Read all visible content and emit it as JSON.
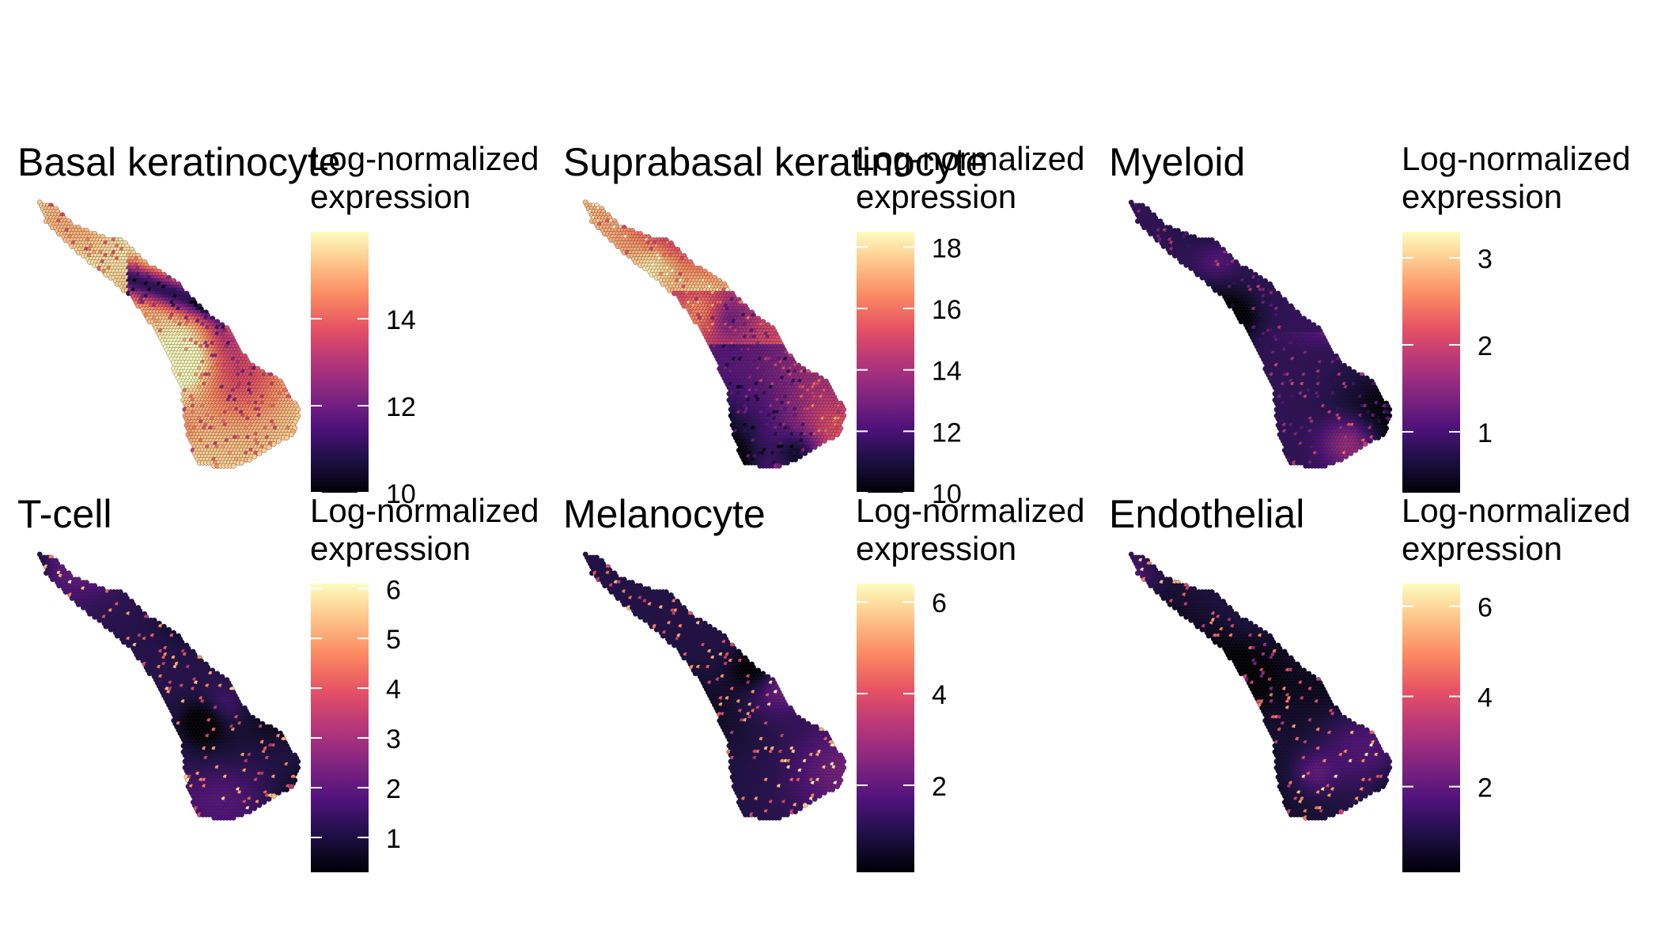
{
  "figure": {
    "colormap": [
      "#000004",
      "#1c1044",
      "#4f127b",
      "#812581",
      "#b5367a",
      "#e55064",
      "#fb8761",
      "#fec287",
      "#fcfdbf"
    ]
  },
  "chart_data": [
    {
      "type": "heatmap",
      "title": "Basal keratinocyte",
      "legend_title": [
        "Log-normalized",
        "expression"
      ],
      "range": [
        10,
        16
      ],
      "ticks": [
        10,
        12,
        14
      ],
      "pattern": "high_everywhere_low_mid_band",
      "mean_level": 0.82
    },
    {
      "type": "heatmap",
      "title": "Suprabasal keratinocyte",
      "legend_title": [
        "Log-normalized",
        "expression"
      ],
      "range": [
        10,
        18.5
      ],
      "ticks": [
        10,
        12,
        14,
        16,
        18
      ],
      "pattern": "high_upper_band_low_bottom",
      "mean_level": 0.55
    },
    {
      "type": "heatmap",
      "title": "Myeloid",
      "legend_title": [
        "Log-normalized",
        "expression"
      ],
      "range": [
        0.3,
        3.3
      ],
      "ticks": [
        1,
        2,
        3
      ],
      "pattern": "moderate_hotspots_lower",
      "mean_level": 0.3
    },
    {
      "type": "heatmap",
      "title": "T-cell",
      "legend_title": [
        "Log-normalized",
        "expression"
      ],
      "range": [
        0.3,
        6.1
      ],
      "ticks": [
        1,
        2,
        3,
        4,
        5,
        6
      ],
      "pattern": "low_with_sparse_hotspots",
      "mean_level": 0.22
    },
    {
      "type": "heatmap",
      "title": "Melanocyte",
      "legend_title": [
        "Log-normalized",
        "expression"
      ],
      "range": [
        0.1,
        6.4
      ],
      "ticks": [
        2,
        4,
        6
      ],
      "pattern": "low_with_band_hotspots",
      "mean_level": 0.2
    },
    {
      "type": "heatmap",
      "title": "Endothelial",
      "legend_title": [
        "Log-normalized",
        "expression"
      ],
      "range": [
        0.1,
        6.5
      ],
      "ticks": [
        2,
        4,
        6
      ],
      "pattern": "low_with_sparse_hotspots",
      "mean_level": 0.18
    }
  ]
}
